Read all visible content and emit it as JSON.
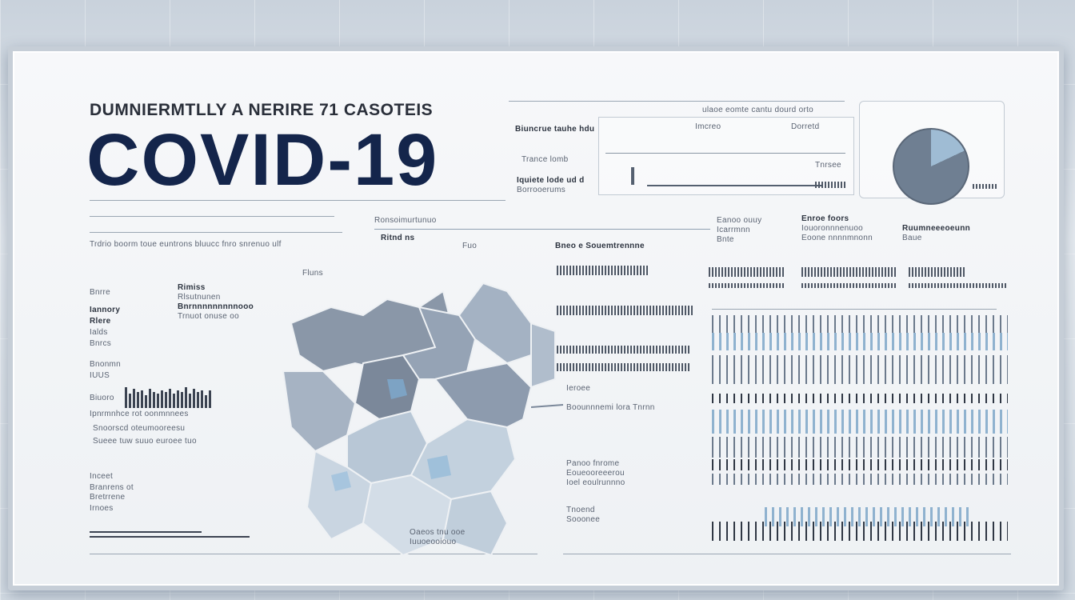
{
  "header": {
    "subtitle": "DUMNIERMTLLY A NERIRE 71   CASOTEIS",
    "title": "COVID-19"
  },
  "top_stats": {
    "labels": [
      "Biuncrue tauhe hdu",
      "Trance lomb",
      "Iquiete lode ud d",
      "Borrooerums"
    ],
    "header_labels": [
      "ulaoe eomte cantu  dourd orto",
      "Tnrsee",
      "Imcreo",
      "Dorretd"
    ]
  },
  "left_panel": {
    "heading": "Trdrio  boorm toue euntrons  bluucc  fnro snrenuo  ulf",
    "labels": [
      "Bnrre",
      "Iannory",
      "Rlere",
      "Ialds",
      "Bnrcs",
      "Bnonmn",
      "IUUS",
      "Biuoro",
      "Ipnrmnhce rot  oonmnnees",
      "Snoorscd  oteumooreesu",
      "Sueee tuw suuo  euroee tuo",
      "Inceet",
      "Branrens ot",
      "Bretrrene",
      "Irnoes"
    ],
    "right_labels": [
      "Rimiss",
      "Rlsutnunen",
      "Bnrnnnnnnnnnooo",
      "Trnuot onuse  oo"
    ]
  },
  "map": {
    "labels": [
      "Ritnd ns",
      "Fuo",
      "Ronsoimurtunuo",
      "Fluns"
    ],
    "footer": [
      "Oaeos  tnu ooe",
      "Iuuoeooiouo"
    ]
  },
  "middle_panel": {
    "title": "Bneo e  Souemtrennne",
    "items": [
      "Ieroee",
      "Boounnnemi lora   Tnrnn",
      "Panoo fnrome",
      "Eoueooreeerou",
      "Ioel eoulrunnno",
      "Tnoend",
      "Sooonee"
    ]
  },
  "right_panel": {
    "labels": [
      "Eanoo ouuy",
      "Icarrmnn",
      "Bnte",
      "Enroe foors",
      "Iouoronnnenuoo",
      "Eoone nnnnmnonn",
      "Ruumneeeoeunn",
      "Baue"
    ]
  }
}
